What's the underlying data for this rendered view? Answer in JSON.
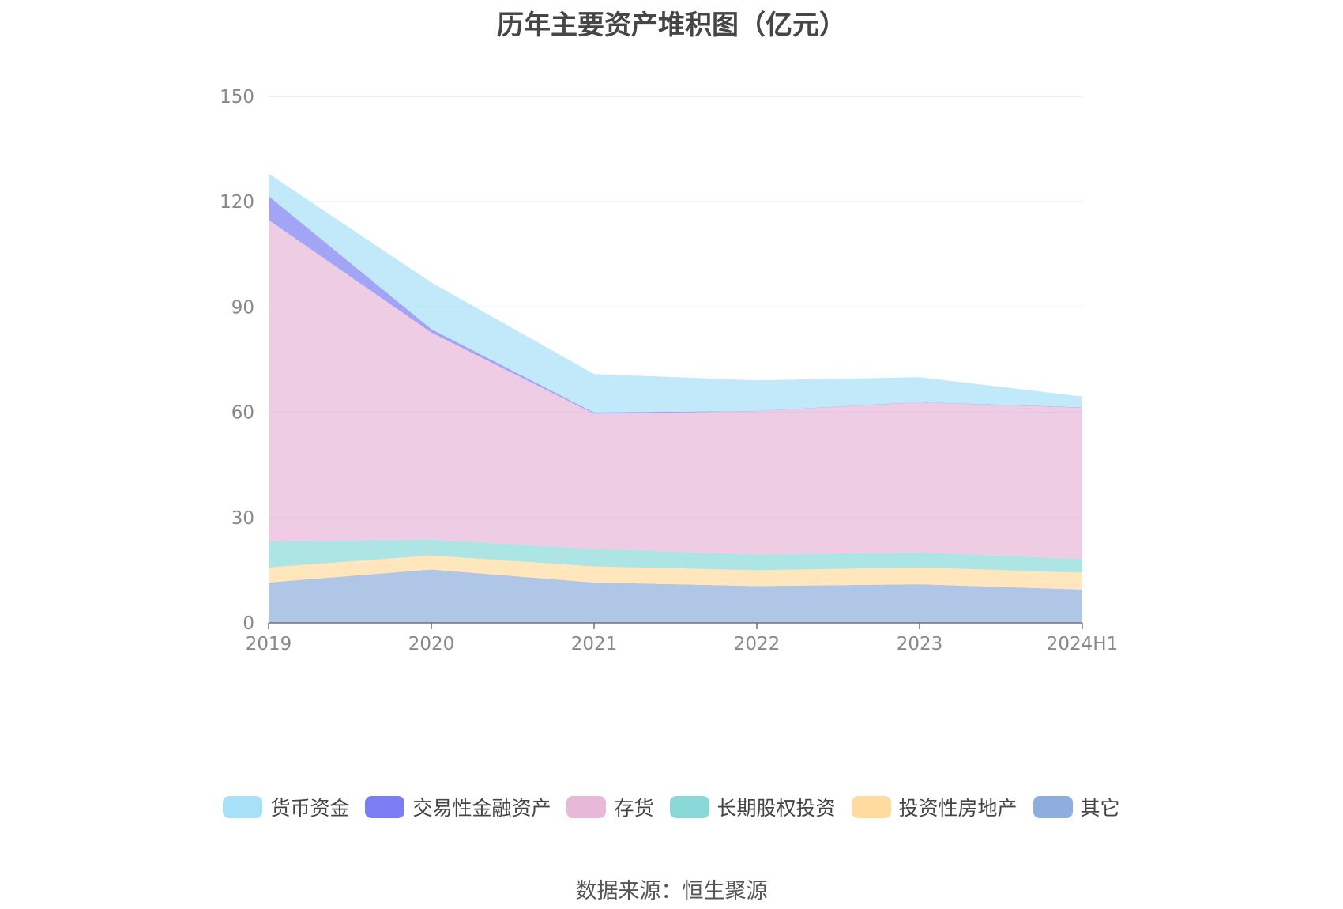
{
  "chart_data": {
    "type": "area",
    "stacked": true,
    "title": "历年主要资产堆积图（亿元）",
    "categories": [
      "2019",
      "2020",
      "2021",
      "2022",
      "2023",
      "2024H1"
    ],
    "ylim": [
      0,
      150
    ],
    "yticks": [
      0,
      30,
      60,
      90,
      120,
      150
    ],
    "grid": true,
    "legend_position": "bottom",
    "series": [
      {
        "name": "其它",
        "color": "#8eaedd",
        "values": [
          11.5,
          15.2,
          11.5,
          10.5,
          11.0,
          9.5
        ]
      },
      {
        "name": "投资性房地产",
        "color": "#ffdba0",
        "values": [
          4.3,
          4.0,
          4.6,
          4.5,
          4.8,
          4.8
        ]
      },
      {
        "name": "长期股权投资",
        "color": "#8ad8d8",
        "values": [
          7.5,
          4.5,
          5.0,
          4.5,
          4.3,
          3.9
        ]
      },
      {
        "name": "存货",
        "color": "#e7b8d8",
        "values": [
          91.5,
          59.0,
          38.5,
          40.8,
          42.7,
          43.1
        ]
      },
      {
        "name": "交易性金融资产",
        "color": "#7b7ef2",
        "values": [
          6.8,
          1.0,
          0.3,
          0.1,
          0.1,
          0.1
        ]
      },
      {
        "name": "货币资金",
        "color": "#a8e0f8",
        "values": [
          6.4,
          13.3,
          11.0,
          8.7,
          7.1,
          3.1
        ]
      }
    ]
  },
  "legend_order": [
    "货币资金",
    "交易性金融资产",
    "存货",
    "长期股权投资",
    "投资性房地产",
    "其它"
  ],
  "source": "数据来源：恒生聚源"
}
